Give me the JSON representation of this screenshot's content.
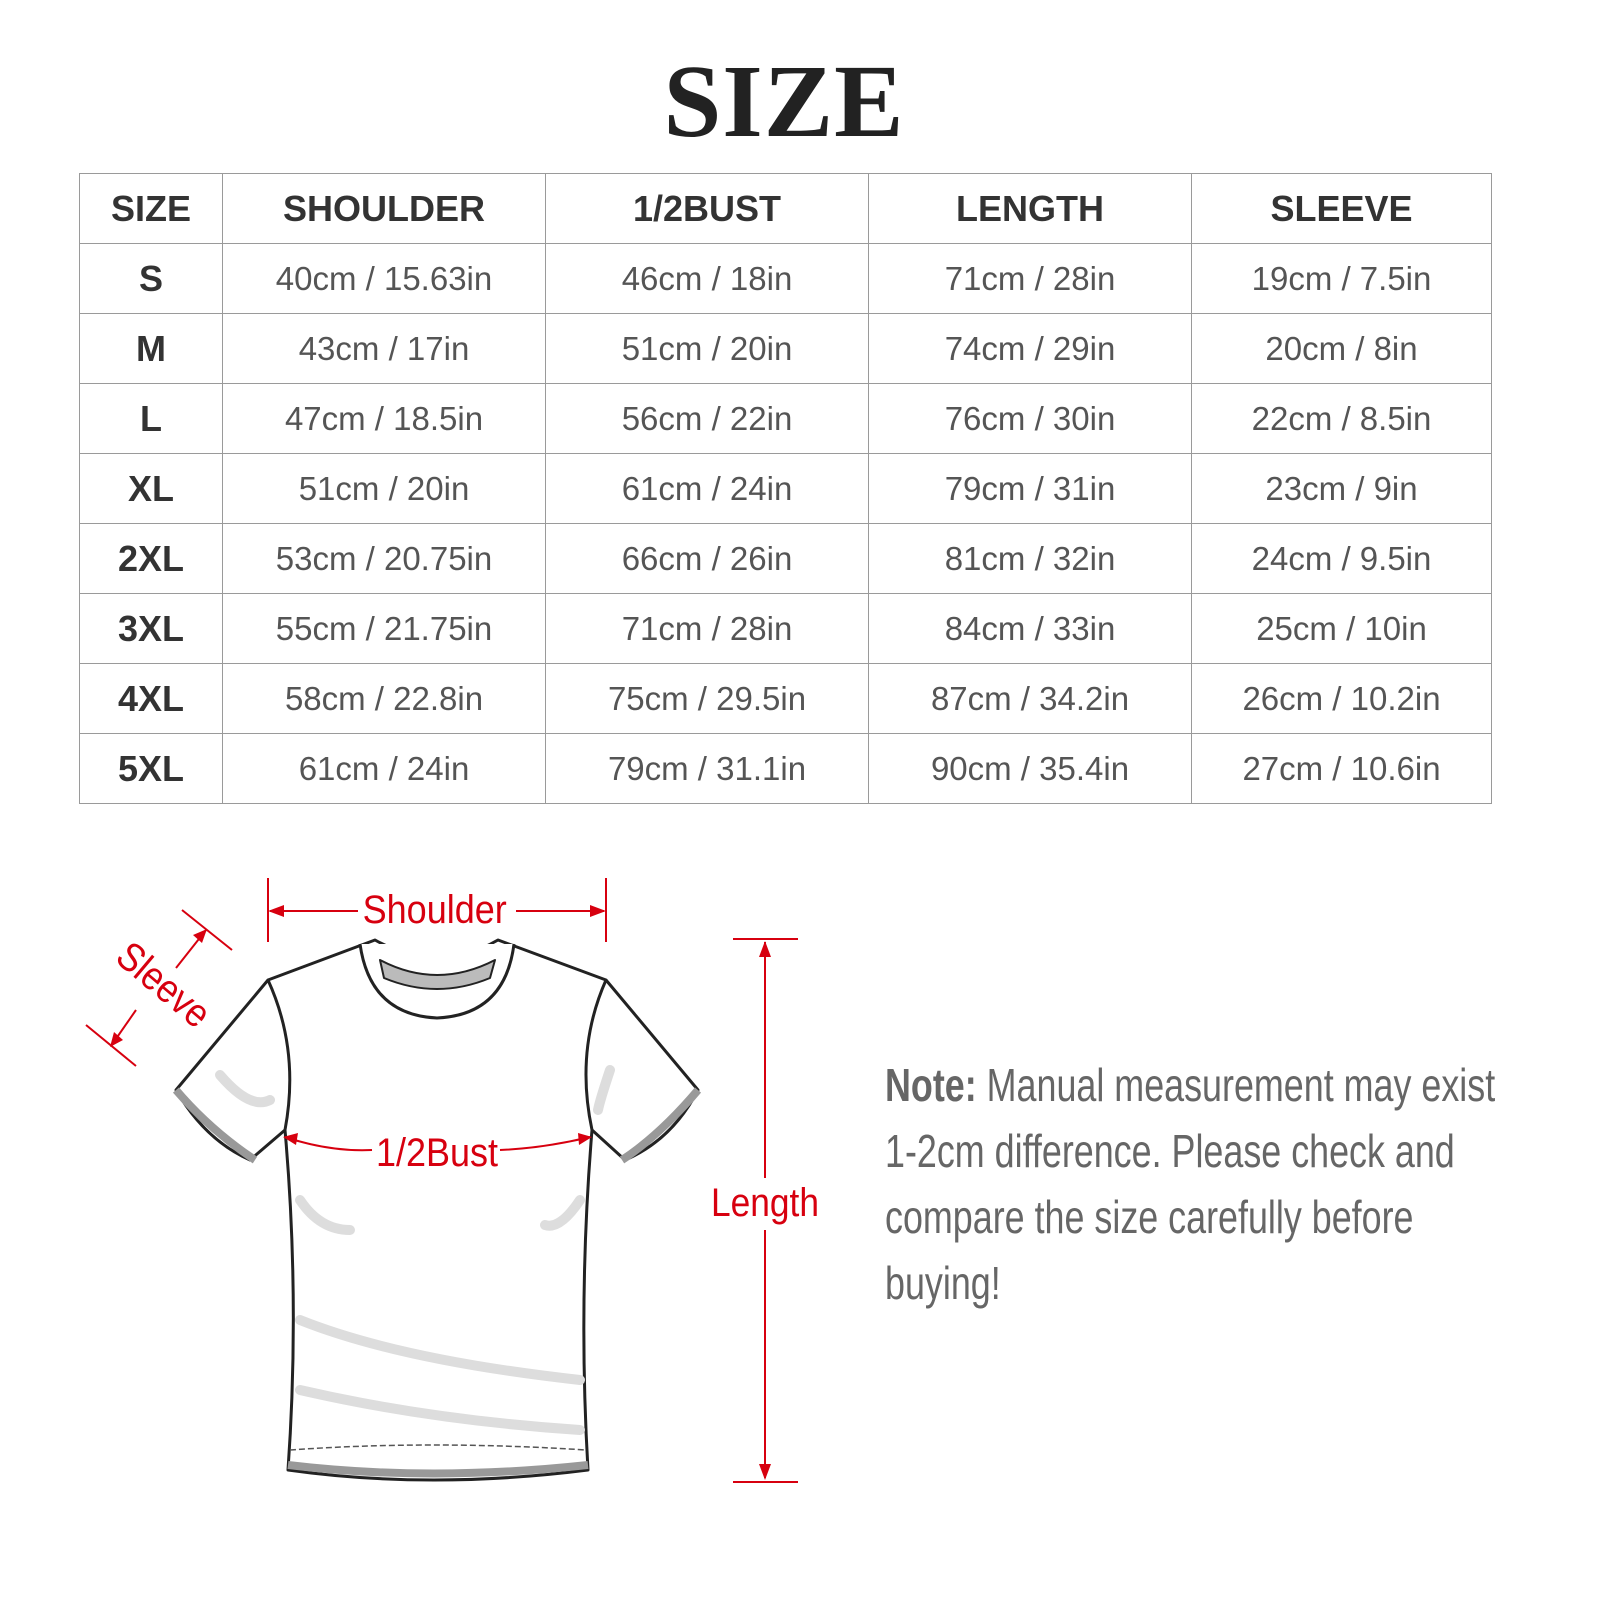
{
  "title": "SIZE",
  "table": {
    "headers": [
      "SIZE",
      "SHOULDER",
      "1/2BUST",
      "LENGTH",
      "SLEEVE"
    ],
    "rows": [
      [
        "S",
        "40cm / 15.63in",
        "46cm / 18in",
        "71cm / 28in",
        "19cm / 7.5in"
      ],
      [
        "M",
        "43cm / 17in",
        "51cm / 20in",
        "74cm / 29in",
        "20cm / 8in"
      ],
      [
        "L",
        "47cm / 18.5in",
        "56cm / 22in",
        "76cm / 30in",
        "22cm / 8.5in"
      ],
      [
        "XL",
        "51cm / 20in",
        "61cm / 24in",
        "79cm / 31in",
        "23cm / 9in"
      ],
      [
        "2XL",
        "53cm / 20.75in",
        "66cm / 26in",
        "81cm / 32in",
        "24cm / 9.5in"
      ],
      [
        "3XL",
        "55cm / 21.75in",
        "71cm / 28in",
        "84cm / 33in",
        "25cm / 10in"
      ],
      [
        "4XL",
        "58cm / 22.8in",
        "75cm / 29.5in",
        "87cm / 34.2in",
        "26cm / 10.2in"
      ],
      [
        "5XL",
        "61cm / 24in",
        "79cm / 31.1in",
        "90cm / 35.4in",
        "27cm / 10.6in"
      ]
    ]
  },
  "diagram": {
    "shoulder": "Shoulder",
    "sleeve": "Sleeve",
    "bust": "1/2Bust",
    "length": "Length",
    "accent_color": "#d7000f"
  },
  "note": {
    "label": "Note:",
    "text": " Manual measurement may exist 1-2cm difference. Please check and compare the size carefully before buying!"
  }
}
